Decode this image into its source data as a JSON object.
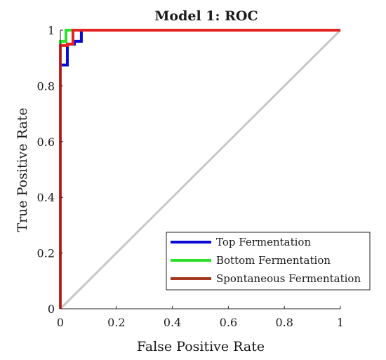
{
  "chart_data": {
    "type": "line",
    "title": "Model 1: ROC",
    "xlabel": "False Positive Rate",
    "ylabel": "True Positive Rate",
    "xlim": [
      0,
      1
    ],
    "ylim": [
      0,
      1
    ],
    "xticks": [
      "0",
      "0.2",
      "0.4",
      "0.6",
      "0.8",
      "1"
    ],
    "yticks": [
      "0",
      "0.2",
      "0.4",
      "0.6",
      "0.8",
      "1"
    ],
    "xtick_values": [
      0,
      0.2,
      0.4,
      0.6,
      0.8,
      1
    ],
    "ytick_values": [
      0,
      0.2,
      0.4,
      0.6,
      0.8,
      1
    ],
    "grid": false,
    "legend_position": "bottom-right",
    "reference_line": {
      "color": "#c8c8c8",
      "x": [
        0,
        1
      ],
      "y": [
        0,
        1
      ]
    },
    "series": [
      {
        "name": "Top Fermentation",
        "color": "#0a0ad2",
        "x": [
          0,
          0,
          0.025,
          0.025,
          0.05,
          0.05,
          0.075,
          0.075,
          1
        ],
        "y": [
          0,
          0.875,
          0.875,
          0.95,
          0.95,
          0.96,
          0.96,
          1,
          1
        ]
      },
      {
        "name": "Bottom Fermentation",
        "color": "#2ee02e",
        "x": [
          0,
          0,
          0.02,
          0.02,
          1
        ],
        "y": [
          0,
          0.96,
          0.96,
          1,
          1
        ]
      },
      {
        "name": "Spontaneous Fermentation",
        "color": "#e52222",
        "legend_color": "#a43a22",
        "x": [
          0,
          0,
          0.025,
          0.025,
          0.045,
          0.045,
          1
        ],
        "y": [
          0,
          0.945,
          0.945,
          0.95,
          0.95,
          1,
          1
        ]
      }
    ]
  }
}
